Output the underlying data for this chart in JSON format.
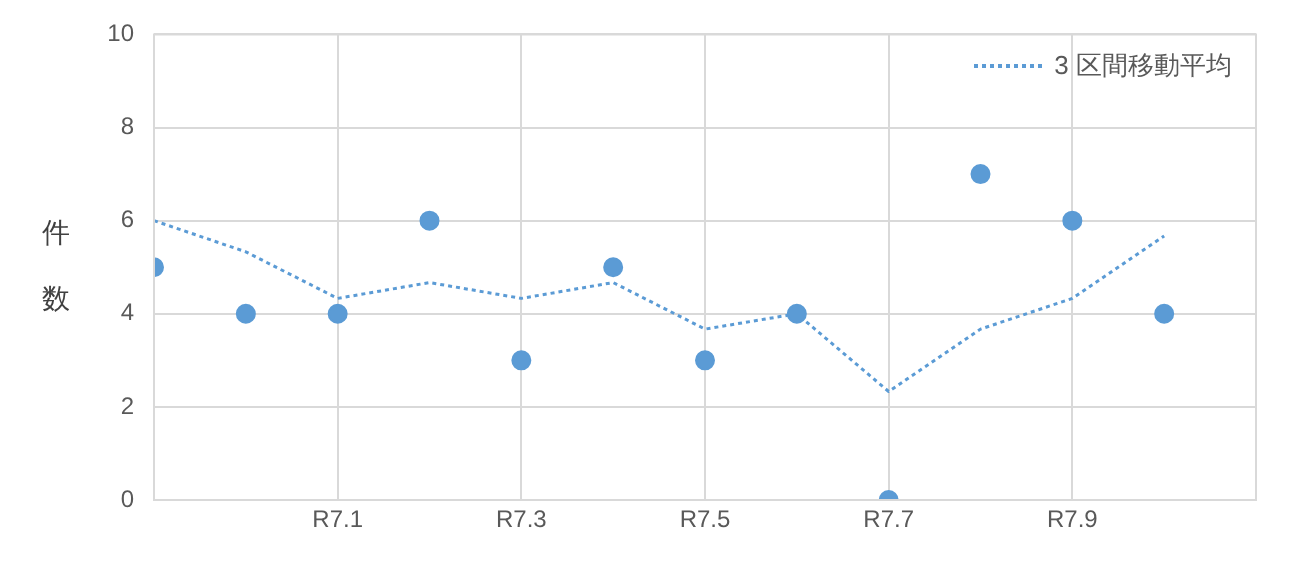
{
  "chart_data": {
    "type": "scatter",
    "ylabel": "件数",
    "categories": [
      null,
      null,
      "R7.1",
      null,
      "R7.3",
      null,
      "R7.5",
      null,
      "R7.7",
      null,
      "R7.9",
      null
    ],
    "series": [
      {
        "type": "scatter",
        "color": "#5b9bd5",
        "marker": "circle",
        "values": [
          5,
          4,
          4,
          6,
          3,
          5,
          3,
          4,
          0,
          7,
          6,
          4
        ]
      },
      {
        "type": "line",
        "name": "3 区間移動平均",
        "color": "#5b9bd5",
        "marker": "none",
        "line_style": "dotted",
        "values": [
          6,
          5.33,
          4.33,
          4.67,
          4.33,
          4.67,
          3.67,
          4,
          2.33,
          3.67,
          4.33,
          5.67
        ]
      }
    ],
    "ylim": [
      0,
      10
    ],
    "yticks": [
      0,
      2,
      4,
      6,
      8,
      10
    ],
    "grid": true,
    "legend": "top right"
  }
}
